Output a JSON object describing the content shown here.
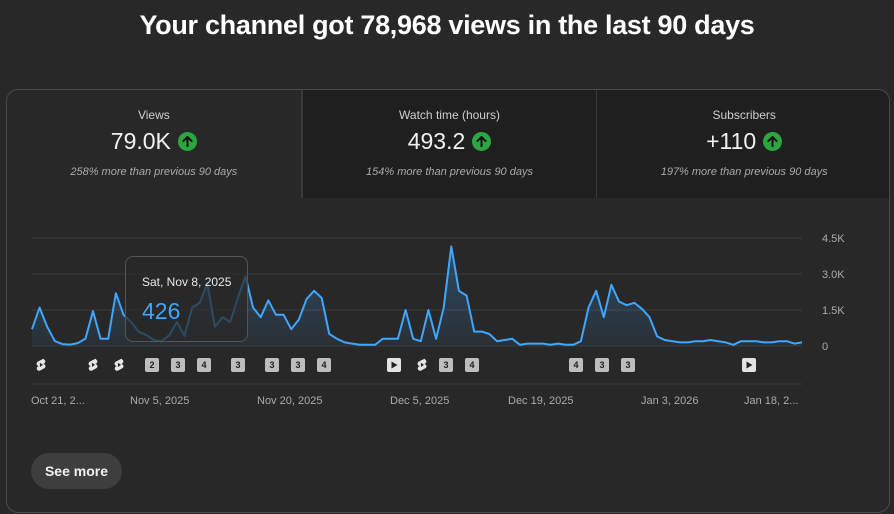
{
  "headline": "Your channel got 78,968 views in the last 90 days",
  "metrics": [
    {
      "title": "Views",
      "value": "79.0K",
      "sub": "258% more than previous 90 days",
      "trend": "up"
    },
    {
      "title": "Watch time (hours)",
      "value": "493.2",
      "sub": "154% more than previous 90 days",
      "trend": "up"
    },
    {
      "title": "Subscribers",
      "value": "+110",
      "sub": "197% more than previous 90 days",
      "trend": "up"
    }
  ],
  "tooltip": {
    "date": "Sat, Nov 8, 2025",
    "value": "426"
  },
  "see_more_label": "See more",
  "colors": {
    "line": "#3ea6ff",
    "up": "#2ba640",
    "background": "#282828"
  },
  "markers": [
    {
      "type": "shorts",
      "label": ""
    },
    {
      "type": "shorts",
      "label": ""
    },
    {
      "type": "shorts",
      "label": ""
    },
    {
      "type": "count",
      "label": "2"
    },
    {
      "type": "count",
      "label": "3"
    },
    {
      "type": "count",
      "label": "4"
    },
    {
      "type": "count",
      "label": "3"
    },
    {
      "type": "count",
      "label": "3"
    },
    {
      "type": "count",
      "label": "3"
    },
    {
      "type": "count",
      "label": "4"
    },
    {
      "type": "play",
      "label": ""
    },
    {
      "type": "shorts",
      "label": ""
    },
    {
      "type": "count",
      "label": "3"
    },
    {
      "type": "count",
      "label": "4"
    },
    {
      "type": "count",
      "label": "4"
    },
    {
      "type": "count",
      "label": "3"
    },
    {
      "type": "count",
      "label": "3"
    },
    {
      "type": "play",
      "label": ""
    }
  ],
  "chart_data": {
    "type": "area",
    "series": [
      {
        "values": [
          700,
          1600,
          800,
          200,
          80,
          60,
          120,
          300,
          1450,
          300,
          300,
          2200,
          1300,
          1000,
          600,
          450,
          250,
          200,
          450,
          1000,
          426,
          1600,
          1800,
          2600,
          800,
          1200,
          1000,
          2000,
          2900,
          1600,
          1200,
          1900,
          1300,
          1300,
          700,
          1100,
          1950,
          2300,
          2000,
          500,
          300,
          150,
          100,
          50,
          50,
          50,
          300,
          300,
          300,
          1500,
          300,
          200,
          1500,
          300,
          1600,
          4150,
          2300,
          2100,
          600,
          600,
          500,
          200,
          250,
          300,
          50,
          100,
          100,
          100,
          50,
          100,
          50,
          50,
          200,
          1600,
          2300,
          1200,
          2550,
          1850,
          1700,
          1800,
          1550,
          1200,
          400,
          250,
          200,
          150,
          150,
          200,
          200,
          250,
          200,
          150,
          50,
          200,
          200,
          200,
          150,
          150,
          200,
          200,
          100,
          150
        ]
      }
    ],
    "x_tick_labels": [
      "Oct 21, 2...",
      "Nov 5, 2025",
      "Nov 20, 2025",
      "Dec 5, 2025",
      "Dec 19, 2025",
      "Jan 3, 2026",
      "Jan 18, 2..."
    ],
    "y_tick_labels": [
      "4.5K",
      "3.0K",
      "1.5K",
      "0"
    ],
    "y_ticks": [
      4500,
      3000,
      1500,
      0
    ],
    "ylim": [
      0,
      4500
    ],
    "grid": true
  }
}
